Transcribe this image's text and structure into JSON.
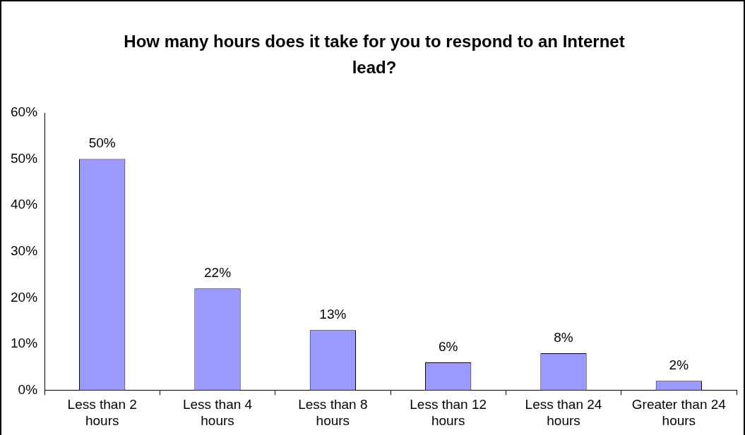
{
  "chart_data": {
    "type": "bar",
    "title": "How many hours does it take for you to respond to an Internet lead?",
    "categories": [
      "Less than 2 hours",
      "Less than 4 hours",
      "Less than 8 hours",
      "Less than 12 hours",
      "Less than 24 hours",
      "Greater than 24 hours"
    ],
    "values": [
      50,
      22,
      13,
      6,
      8,
      2
    ],
    "value_labels": [
      "50%",
      "22%",
      "13%",
      "6%",
      "8%",
      "2%"
    ],
    "color": "#9999ff",
    "ylim": [
      0,
      60
    ],
    "yticks": [
      {
        "value": 0,
        "label": "0%"
      },
      {
        "value": 10,
        "label": "10%"
      },
      {
        "value": 20,
        "label": "20%"
      },
      {
        "value": 30,
        "label": "30%"
      },
      {
        "value": 40,
        "label": "40%"
      },
      {
        "value": 50,
        "label": "50%"
      },
      {
        "value": 60,
        "label": "60%"
      }
    ]
  }
}
